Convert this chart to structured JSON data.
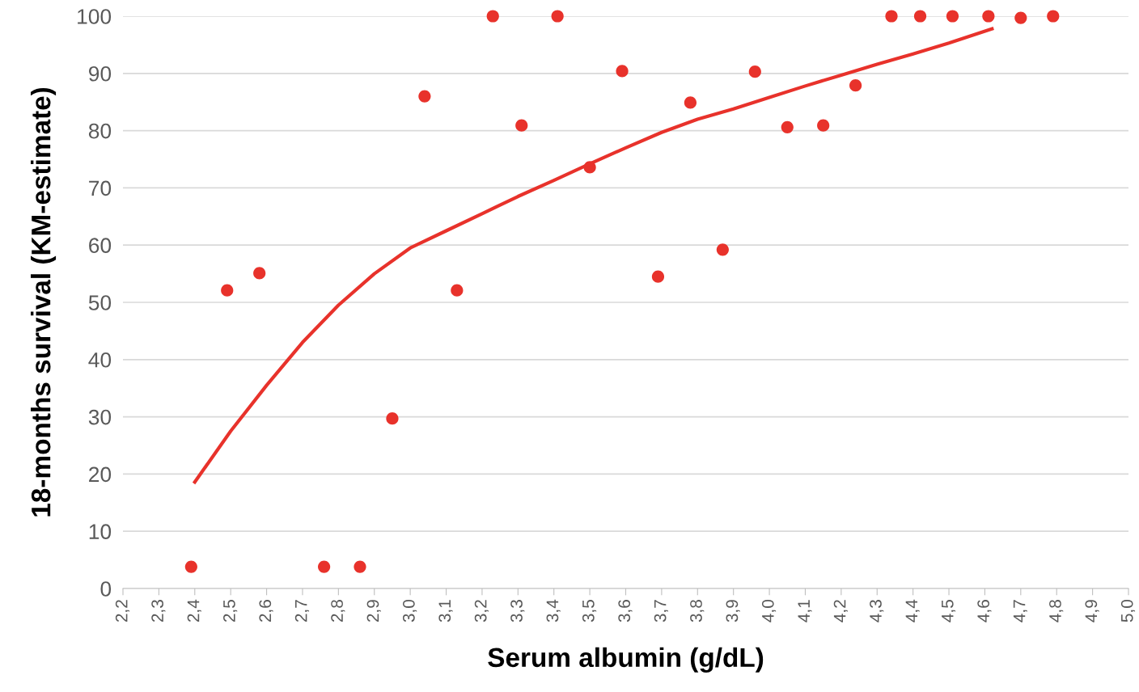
{
  "chart_data": {
    "type": "scatter",
    "xlabel": "Serum albumin (g/dL)",
    "ylabel": "18-months survival (KM-estimate)",
    "xlim": [
      2.2,
      5.0
    ],
    "xticks": [
      {
        "value": 2.2,
        "label": "2,2"
      },
      {
        "value": 2.3,
        "label": "2,3"
      },
      {
        "value": 2.4,
        "label": "2,4"
      },
      {
        "value": 2.5,
        "label": "2,5"
      },
      {
        "value": 2.6,
        "label": "2,6"
      },
      {
        "value": 2.7,
        "label": "2,7"
      },
      {
        "value": 2.8,
        "label": "2,8"
      },
      {
        "value": 2.9,
        "label": "2,9"
      },
      {
        "value": 3.0,
        "label": "3,0"
      },
      {
        "value": 3.1,
        "label": "3,1"
      },
      {
        "value": 3.2,
        "label": "3,2"
      },
      {
        "value": 3.3,
        "label": "3,3"
      },
      {
        "value": 3.4,
        "label": "3,4"
      },
      {
        "value": 3.5,
        "label": "3,5"
      },
      {
        "value": 3.6,
        "label": "3,6"
      },
      {
        "value": 3.7,
        "label": "3,7"
      },
      {
        "value": 3.8,
        "label": "3,8"
      },
      {
        "value": 3.9,
        "label": "3,9"
      },
      {
        "value": 4.0,
        "label": "4,0"
      },
      {
        "value": 4.1,
        "label": "4,1"
      },
      {
        "value": 4.2,
        "label": "4,2"
      },
      {
        "value": 4.3,
        "label": "4,3"
      },
      {
        "value": 4.4,
        "label": "4,4"
      },
      {
        "value": 4.5,
        "label": "4,5"
      },
      {
        "value": 4.6,
        "label": "4,6"
      },
      {
        "value": 4.7,
        "label": "4,7"
      },
      {
        "value": 4.8,
        "label": "4,8"
      },
      {
        "value": 4.9,
        "label": "4,9"
      },
      {
        "value": 5.0,
        "label": "5,0"
      }
    ],
    "ylim": [
      0,
      100
    ],
    "yticks": [
      0,
      10,
      20,
      30,
      40,
      50,
      60,
      70,
      80,
      90,
      100
    ],
    "grid": "y",
    "series": [
      {
        "color": "#e8322b",
        "marker": "circle",
        "x": [
          2.39,
          2.49,
          2.58,
          2.76,
          2.86,
          2.95,
          3.04,
          3.13,
          3.23,
          3.31,
          3.41,
          3.5,
          3.59,
          3.69,
          3.78,
          3.87,
          3.96,
          4.05,
          4.15,
          4.24,
          4.34,
          4.42,
          4.51,
          4.61,
          4.7,
          4.79
        ],
        "values": [
          3.8,
          52.1,
          55.1,
          3.8,
          3.8,
          29.7,
          86.0,
          52.1,
          100,
          80.9,
          100,
          73.6,
          90.4,
          54.5,
          84.9,
          59.2,
          90.3,
          80.6,
          80.9,
          87.9,
          100,
          100,
          100,
          100,
          99.7,
          100
        ]
      },
      {
        "type": "line",
        "color": "#e8322b",
        "x": [
          2.4,
          2.5,
          2.6,
          2.7,
          2.8,
          2.9,
          3.0,
          3.1,
          3.2,
          3.3,
          3.4,
          3.5,
          3.6,
          3.7,
          3.8,
          3.9,
          4.0,
          4.1,
          4.2,
          4.3,
          4.4,
          4.5,
          4.62
        ],
        "values": [
          18.6,
          27.5,
          35.5,
          43,
          49.5,
          55,
          59.5,
          62.5,
          65.5,
          68.5,
          71.3,
          74.2,
          77,
          79.7,
          82,
          83.8,
          85.8,
          87.8,
          89.7,
          91.6,
          93.4,
          95.3,
          97.8
        ]
      }
    ]
  }
}
